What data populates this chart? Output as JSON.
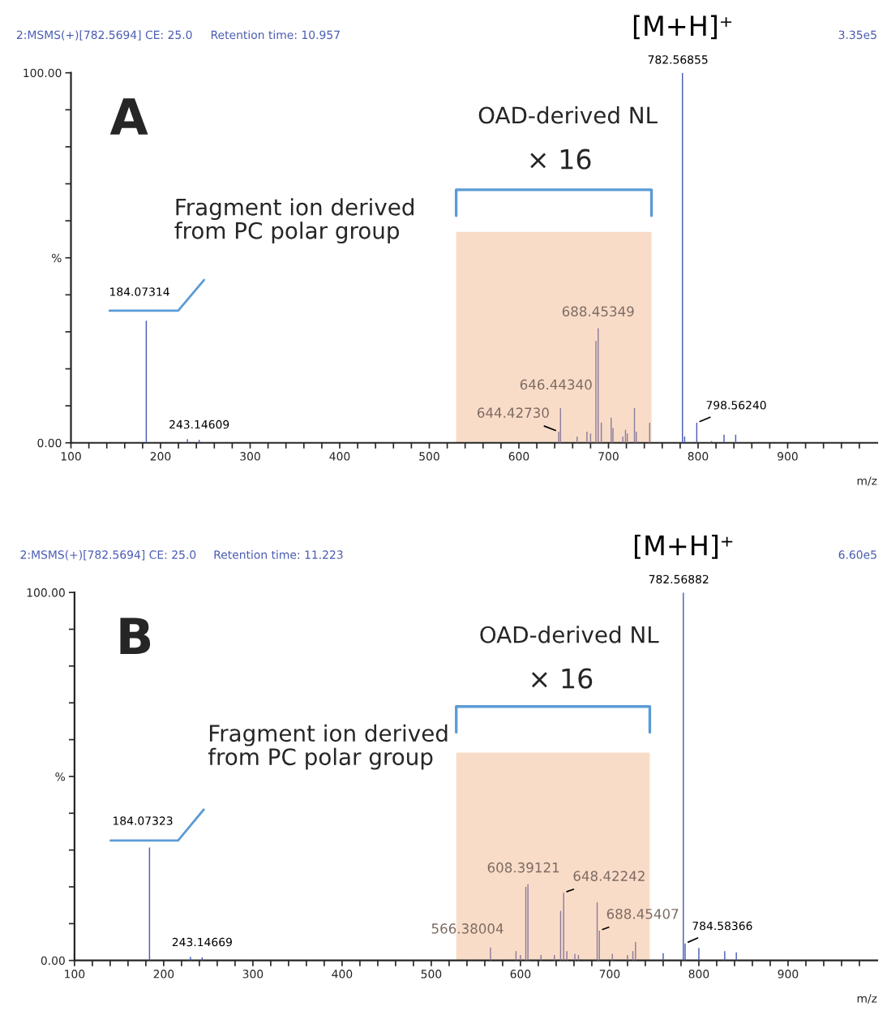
{
  "chart_data": [
    {
      "type": "bar",
      "title": "2:MSMS(+)[782.5694] CE: 25.0",
      "subtitle": "Retention time: 10.957",
      "xlabel": "m/z",
      "annotations": [
        "A",
        "OAD-derived NL",
        "× 16",
        "Fragment ion derived\nfrom PC polar group",
        "3.35e5",
        {
          "text": "184.07314",
          "x": 184.07314,
          "y": 33
        },
        {
          "text": "243.14609",
          "x": 243.14609,
          "y": 0.8
        },
        {
          "text": "644.42730",
          "x": 644.4273,
          "y": 3
        },
        {
          "text": "646.44340",
          "x": 646.4434,
          "y": 9.4
        },
        {
          "text": "688.45349",
          "x": 688.45349,
          "y": 31
        },
        {
          "text": "782.56855",
          "x": 782.56855,
          "y": 100
        },
        {
          "text": "798.56240",
          "x": 798.5624,
          "y": 5.4
        },
        {
          "text": "[M+H]⁺",
          "x": 782.56855,
          "y": 100
        }
      ],
      "x": [
        184.07314,
        230,
        243.14609,
        644.4273,
        646.4434,
        665,
        676,
        680,
        686,
        688.45349,
        692,
        703,
        705,
        716,
        719,
        721,
        729,
        731,
        746,
        782.56855,
        785,
        798.5624,
        815,
        829,
        842
      ],
      "values": [
        33,
        1,
        0.8,
        3,
        9.4,
        1.7,
        3,
        2.5,
        27.5,
        31,
        5.5,
        6.8,
        4,
        1.7,
        3.5,
        2.5,
        9.4,
        3,
        5.4,
        100,
        1.7,
        5.4,
        0.5,
        2.2,
        2.2
      ],
      "colors": [
        "#4b5db3",
        "#4b5db3",
        "#4b5db3",
        "#8c7d9c",
        "#8c7d9c",
        "#8c7d9c",
        "#8c7d9c",
        "#8c7d9c",
        "#8c7d9c",
        "#8c7d9c",
        "#8c7d9c",
        "#8c7d9c",
        "#8c7d9c",
        "#8c7d9c",
        "#8c7d9c",
        "#8c7d9c",
        "#8c7d9c",
        "#8c7d9c",
        "#8c7d9c",
        "#4b5db3",
        "#4b5db3",
        "#4b5db3",
        "#4b5db3",
        "#4b5db3",
        "#4b5db3"
      ],
      "bands": [
        {
          "axis": "x",
          "from": 530,
          "to": 748,
          "color": "#f9dcc8"
        }
      ],
      "xlim": [
        100,
        1000
      ],
      "ylim": [
        0,
        100
      ],
      "xticks": [
        100,
        {
          "value": 120,
          "label": null
        },
        {
          "value": 140,
          "label": null
        },
        {
          "value": 160,
          "label": null
        },
        {
          "value": 180,
          "label": null
        },
        200,
        {
          "value": 220,
          "label": null
        },
        {
          "value": 240,
          "label": null
        },
        {
          "value": 260,
          "label": null
        },
        {
          "value": 280,
          "label": null
        },
        300,
        {
          "value": 320,
          "label": null
        },
        {
          "value": 340,
          "label": null
        },
        {
          "value": 360,
          "label": null
        },
        {
          "value": 380,
          "label": null
        },
        400,
        {
          "value": 420,
          "label": null
        },
        {
          "value": 440,
          "label": null
        },
        {
          "value": 460,
          "label": null
        },
        {
          "value": 480,
          "label": null
        },
        500,
        {
          "value": 520,
          "label": null
        },
        {
          "value": 540,
          "label": null
        },
        {
          "value": 560,
          "label": null
        },
        {
          "value": 580,
          "label": null
        },
        600,
        {
          "value": 620,
          "label": null
        },
        {
          "value": 640,
          "label": null
        },
        {
          "value": 660,
          "label": null
        },
        {
          "value": 680,
          "label": null
        },
        700,
        {
          "value": 720,
          "label": null
        },
        {
          "value": 740,
          "label": null
        },
        {
          "value": 760,
          "label": null
        },
        {
          "value": 780,
          "label": null
        },
        800,
        {
          "value": 820,
          "label": null
        },
        {
          "value": 840,
          "label": null
        },
        {
          "value": 860,
          "label": null
        },
        {
          "value": 880,
          "label": null
        },
        900,
        {
          "value": 920,
          "label": null
        },
        {
          "value": 940,
          "label": null
        },
        {
          "value": 960,
          "label": null
        },
        {
          "value": 980,
          "label": null
        }
      ],
      "yticks": [
        {
          "value": 0,
          "label": "0.00"
        },
        {
          "value": 10,
          "label": null
        },
        {
          "value": 20,
          "label": null
        },
        {
          "value": 30,
          "label": null
        },
        {
          "value": 40,
          "label": null
        },
        {
          "value": 50,
          "label": "%"
        },
        {
          "value": 60,
          "label": null
        },
        {
          "value": 70,
          "label": null
        },
        {
          "value": 80,
          "label": null
        },
        {
          "value": 90,
          "label": null
        },
        {
          "value": 100,
          "label": "100.00"
        }
      ]
    },
    {
      "type": "bar",
      "title": "2:MSMS(+)[782.5694] CE: 25.0",
      "subtitle": "Retention time: 11.223",
      "xlabel": "m/z",
      "annotations": [
        "B",
        "OAD-derived NL",
        "× 16",
        "Fragment ion derived\nfrom PC polar group",
        "6.60e5",
        {
          "text": "184.07323",
          "x": 184.07323,
          "y": 30.7
        },
        {
          "text": "243.14669",
          "x": 243.14669,
          "y": 0.8
        },
        {
          "text": "566.38004",
          "x": 566.38004,
          "y": 3.5
        },
        {
          "text": "608.39121",
          "x": 608.39121,
          "y": 20.7
        },
        {
          "text": "648.42242",
          "x": 648.42242,
          "y": 18.4
        },
        {
          "text": "688.45407",
          "x": 688.45407,
          "y": 8.1
        },
        {
          "text": "782.56882",
          "x": 782.56882,
          "y": 100
        },
        {
          "text": "784.58366",
          "x": 784.58366,
          "y": 4.6
        },
        {
          "text": "[M+H]⁺",
          "x": 782.56882,
          "y": 100
        }
      ],
      "x": [
        184.07323,
        230,
        243.14669,
        566.38004,
        595,
        600,
        606,
        608.39121,
        623,
        638,
        645,
        648.42242,
        652,
        661,
        665,
        686,
        688.45407,
        703,
        720,
        726,
        729,
        760,
        782.56882,
        784.58366,
        800,
        829,
        842
      ],
      "values": [
        30.7,
        1,
        0.8,
        3.5,
        2.5,
        1.5,
        20,
        20.7,
        1.5,
        1.5,
        13.5,
        18.4,
        2.5,
        1.8,
        1.5,
        15.8,
        8.1,
        1.8,
        1.5,
        2.5,
        5,
        2,
        100,
        4.6,
        3.4,
        2.5,
        2.2
      ],
      "colors": [
        "#4b5db3",
        "#4b5db3",
        "#4b5db3",
        "#8c7d9c",
        "#8c7d9c",
        "#8c7d9c",
        "#8c7d9c",
        "#8c7d9c",
        "#8c7d9c",
        "#8c7d9c",
        "#8c7d9c",
        "#8c7d9c",
        "#8c7d9c",
        "#8c7d9c",
        "#8c7d9c",
        "#8c7d9c",
        "#8c7d9c",
        "#8c7d9c",
        "#8c7d9c",
        "#8c7d9c",
        "#8c7d9c",
        "#4b5db3",
        "#4b5db3",
        "#4b5db3",
        "#4b5db3",
        "#4b5db3",
        "#4b5db3"
      ],
      "bands": [
        {
          "axis": "x",
          "from": 528,
          "to": 745,
          "color": "#f9dcc8"
        }
      ],
      "xlim": [
        100,
        1000
      ],
      "ylim": [
        0,
        100
      ],
      "xticks": [
        100,
        {
          "value": 120,
          "label": null
        },
        {
          "value": 140,
          "label": null
        },
        {
          "value": 160,
          "label": null
        },
        {
          "value": 180,
          "label": null
        },
        200,
        {
          "value": 220,
          "label": null
        },
        {
          "value": 240,
          "label": null
        },
        {
          "value": 260,
          "label": null
        },
        {
          "value": 280,
          "label": null
        },
        300,
        {
          "value": 320,
          "label": null
        },
        {
          "value": 340,
          "label": null
        },
        {
          "value": 360,
          "label": null
        },
        {
          "value": 380,
          "label": null
        },
        400,
        {
          "value": 420,
          "label": null
        },
        {
          "value": 440,
          "label": null
        },
        {
          "value": 460,
          "label": null
        },
        {
          "value": 480,
          "label": null
        },
        500,
        {
          "value": 520,
          "label": null
        },
        {
          "value": 540,
          "label": null
        },
        {
          "value": 560,
          "label": null
        },
        {
          "value": 580,
          "label": null
        },
        600,
        {
          "value": 620,
          "label": null
        },
        {
          "value": 640,
          "label": null
        },
        {
          "value": 660,
          "label": null
        },
        {
          "value": 680,
          "label": null
        },
        700,
        {
          "value": 720,
          "label": null
        },
        {
          "value": 740,
          "label": null
        },
        {
          "value": 760,
          "label": null
        },
        {
          "value": 780,
          "label": null
        },
        800,
        {
          "value": 820,
          "label": null
        },
        {
          "value": 840,
          "label": null
        },
        {
          "value": 860,
          "label": null
        },
        {
          "value": 880,
          "label": null
        },
        900,
        {
          "value": 920,
          "label": null
        },
        {
          "value": 940,
          "label": null
        },
        {
          "value": 960,
          "label": null
        },
        {
          "value": 980,
          "label": null
        }
      ],
      "yticks": [
        {
          "value": 0,
          "label": "0.00"
        },
        {
          "value": 10,
          "label": null
        },
        {
          "value": 20,
          "label": null
        },
        {
          "value": 30,
          "label": null
        },
        {
          "value": 40,
          "label": null
        },
        {
          "value": 50,
          "label": "%"
        },
        {
          "value": 60,
          "label": null
        },
        {
          "value": 70,
          "label": null
        },
        {
          "value": 80,
          "label": null
        },
        {
          "value": 90,
          "label": null
        },
        {
          "value": 100,
          "label": "100.00"
        }
      ]
    }
  ]
}
